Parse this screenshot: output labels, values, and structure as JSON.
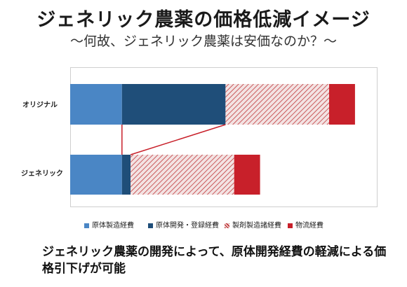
{
  "title": "ジェネリック農薬の価格低減イメージ",
  "subtitle": "～何故、ジェネリック農薬は安価なのか？～",
  "caption": "ジェネリック農薬の開発によって、原体開発経費の軽減による価格引下げが可能",
  "chart_data": {
    "type": "bar",
    "orientation": "horizontal-stacked",
    "categories": [
      "オリジナル",
      "ジェネリック"
    ],
    "series": [
      {
        "name": "原体製造経費",
        "values": [
          18,
          18
        ],
        "color": "#4a86c5",
        "pattern": "solid"
      },
      {
        "name": "原体開発・登録経費",
        "values": [
          36,
          3
        ],
        "color": "#1f4e79",
        "pattern": "solid"
      },
      {
        "name": "製剤製造諸経費",
        "values": [
          36,
          36
        ],
        "color": "#c0393b",
        "pattern": "hatch"
      },
      {
        "name": "物流経費",
        "values": [
          9,
          9
        ],
        "color": "#c8202a",
        "pattern": "solid"
      }
    ],
    "legend_position": "bottom",
    "connector_lines": true
  }
}
